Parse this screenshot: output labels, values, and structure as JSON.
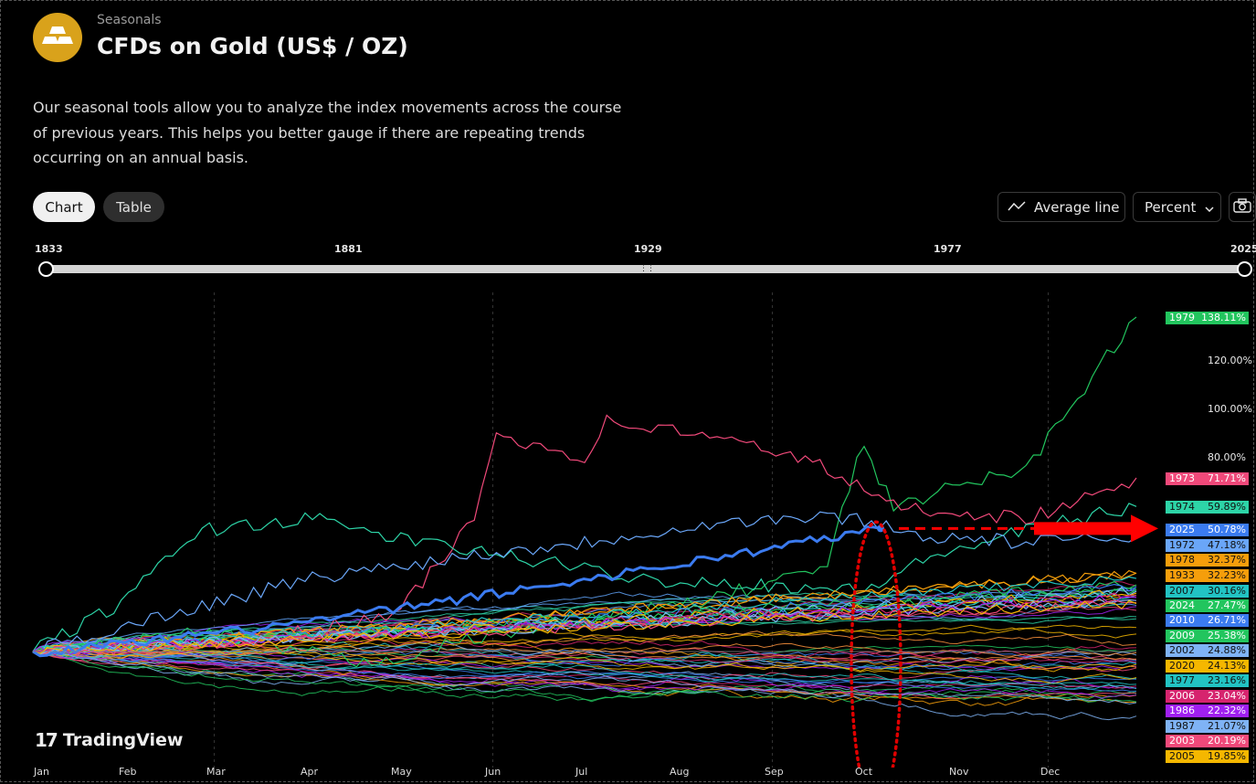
{
  "header": {
    "eyebrow": "Seasonals",
    "title": "CFDs on Gold (US$ / OZ)",
    "description": "Our seasonal tools allow you to analyze the index movements across the course of previous years. This helps you better gauge if there are repeating trends occurring on an annual basis."
  },
  "toolbar": {
    "chart_tab": "Chart",
    "table_tab": "Table",
    "average_line": "Average line",
    "mode": "Percent",
    "icons": {
      "average": "trend-line-icon",
      "dropdown": "chevron-down-icon",
      "snapshot": "camera-icon"
    }
  },
  "range": {
    "ticks": [
      "1833",
      "1881",
      "1929",
      "1977",
      "2025"
    ]
  },
  "branding": {
    "name": "TradingView",
    "logo_glyph": "17"
  },
  "chart_data": {
    "type": "line",
    "title": "",
    "xlabel": "",
    "ylabel": "",
    "x_categories": [
      "Jan",
      "Feb",
      "Mar",
      "Apr",
      "May",
      "Jun",
      "Jul",
      "Aug",
      "Sep",
      "Oct",
      "Nov",
      "Dec"
    ],
    "y_ticks": [
      "120.00%",
      "100.00%",
      "80.00%"
    ],
    "ylim": [
      -35,
      140
    ],
    "series": [
      {
        "name": "1979",
        "value": "138.11%",
        "color": "#22c55e",
        "end": 138.11
      },
      {
        "name": "1973",
        "value": "71.71%",
        "color": "#f0497a",
        "end": 71.71
      },
      {
        "name": "1974",
        "value": "59.89%",
        "color": "#2dd4a7",
        "end": 59.89
      },
      {
        "name": "2025",
        "value": "50.78%",
        "color": "#3b7bf0",
        "end": 50.78
      },
      {
        "name": "1972",
        "value": "47.18%",
        "color": "#6aa6f8",
        "end": 47.18
      },
      {
        "name": "1978",
        "value": "32.37%",
        "color": "#f59e0b",
        "end": 32.37
      },
      {
        "name": "1933",
        "value": "32.23%",
        "color": "#f59e0b",
        "end": 32.23
      },
      {
        "name": "2007",
        "value": "30.16%",
        "color": "#22c3c3",
        "end": 30.16
      },
      {
        "name": "2024",
        "value": "27.47%",
        "color": "#22c55e",
        "end": 27.47
      },
      {
        "name": "2010",
        "value": "26.71%",
        "color": "#3b7bf0",
        "end": 26.71
      },
      {
        "name": "2009",
        "value": "25.38%",
        "color": "#22c55e",
        "end": 25.38
      },
      {
        "name": "2002",
        "value": "24.88%",
        "color": "#7fb3f5",
        "end": 24.88
      },
      {
        "name": "2020",
        "value": "24.13%",
        "color": "#f5b700",
        "end": 24.13
      },
      {
        "name": "1977",
        "value": "23.16%",
        "color": "#22c3c3",
        "end": 23.16
      },
      {
        "name": "2006",
        "value": "23.04%",
        "color": "#d6246e",
        "end": 23.04
      },
      {
        "name": "1986",
        "value": "22.32%",
        "color": "#a020f0",
        "end": 22.32
      },
      {
        "name": "1987",
        "value": "21.07%",
        "color": "#7fb3f5",
        "end": 21.07
      },
      {
        "name": "2003",
        "value": "20.19%",
        "color": "#f0497a",
        "end": 20.19
      },
      {
        "name": "2005",
        "value": "19.85%",
        "color": "#f5b700",
        "end": 19.85
      }
    ],
    "highlight": {
      "series": "2025",
      "month": "Oct",
      "value": 50.78
    }
  }
}
